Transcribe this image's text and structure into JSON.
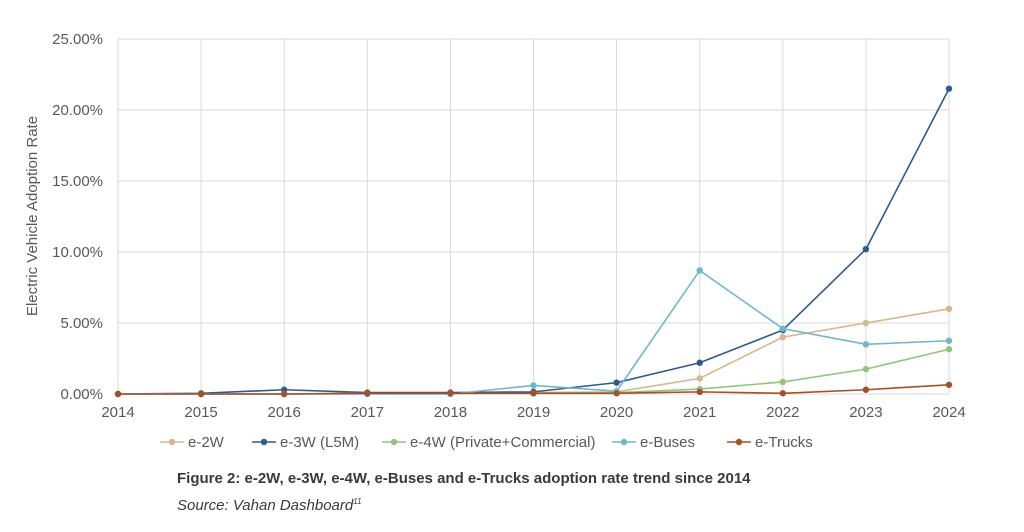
{
  "chart_data": {
    "type": "line",
    "x": [
      "2014",
      "2015",
      "2016",
      "2017",
      "2018",
      "2019",
      "2020",
      "2021",
      "2022",
      "2023",
      "2024"
    ],
    "ylabel": "Electric Vehicle Adoption Rate",
    "ylim": [
      0,
      25
    ],
    "yticks": [
      "0.00%",
      "5.00%",
      "10.00%",
      "15.00%",
      "20.00%",
      "25.00%"
    ],
    "ytick_values": [
      0,
      5,
      10,
      15,
      20,
      25
    ],
    "grid": true,
    "legend_position": "bottom",
    "series": [
      {
        "name": "e-2W",
        "color": "#d6b88f",
        "values": [
          0.0,
          0.0,
          0.0,
          0.05,
          0.05,
          0.1,
          0.15,
          1.1,
          4.0,
          5.0,
          6.0
        ]
      },
      {
        "name": "e-3W (L5M)",
        "color": "#2e5a8c",
        "values": [
          0.0,
          0.05,
          0.3,
          0.1,
          0.1,
          0.15,
          0.8,
          2.2,
          4.5,
          10.2,
          21.5
        ]
      },
      {
        "name": "e-4W (Private+Commercial)",
        "color": "#93c47d",
        "values": [
          0.0,
          0.0,
          0.0,
          0.05,
          0.05,
          0.05,
          0.1,
          0.35,
          0.85,
          1.75,
          3.15
        ]
      },
      {
        "name": "e-Buses",
        "color": "#6fb8cc",
        "values": [
          0.0,
          0.0,
          0.0,
          0.0,
          0.0,
          0.6,
          0.2,
          8.7,
          4.6,
          3.5,
          3.75
        ]
      },
      {
        "name": "e-Trucks",
        "color": "#a0522d",
        "values": [
          0.0,
          0.0,
          0.0,
          0.05,
          0.05,
          0.05,
          0.05,
          0.15,
          0.05,
          0.3,
          0.65
        ]
      }
    ]
  },
  "caption": "Figure 2: e-2W, e-3W, e-4W, e-Buses and e-Trucks adoption rate trend since 2014",
  "source": "Source: Vahan Dashboard",
  "source_note": "11"
}
